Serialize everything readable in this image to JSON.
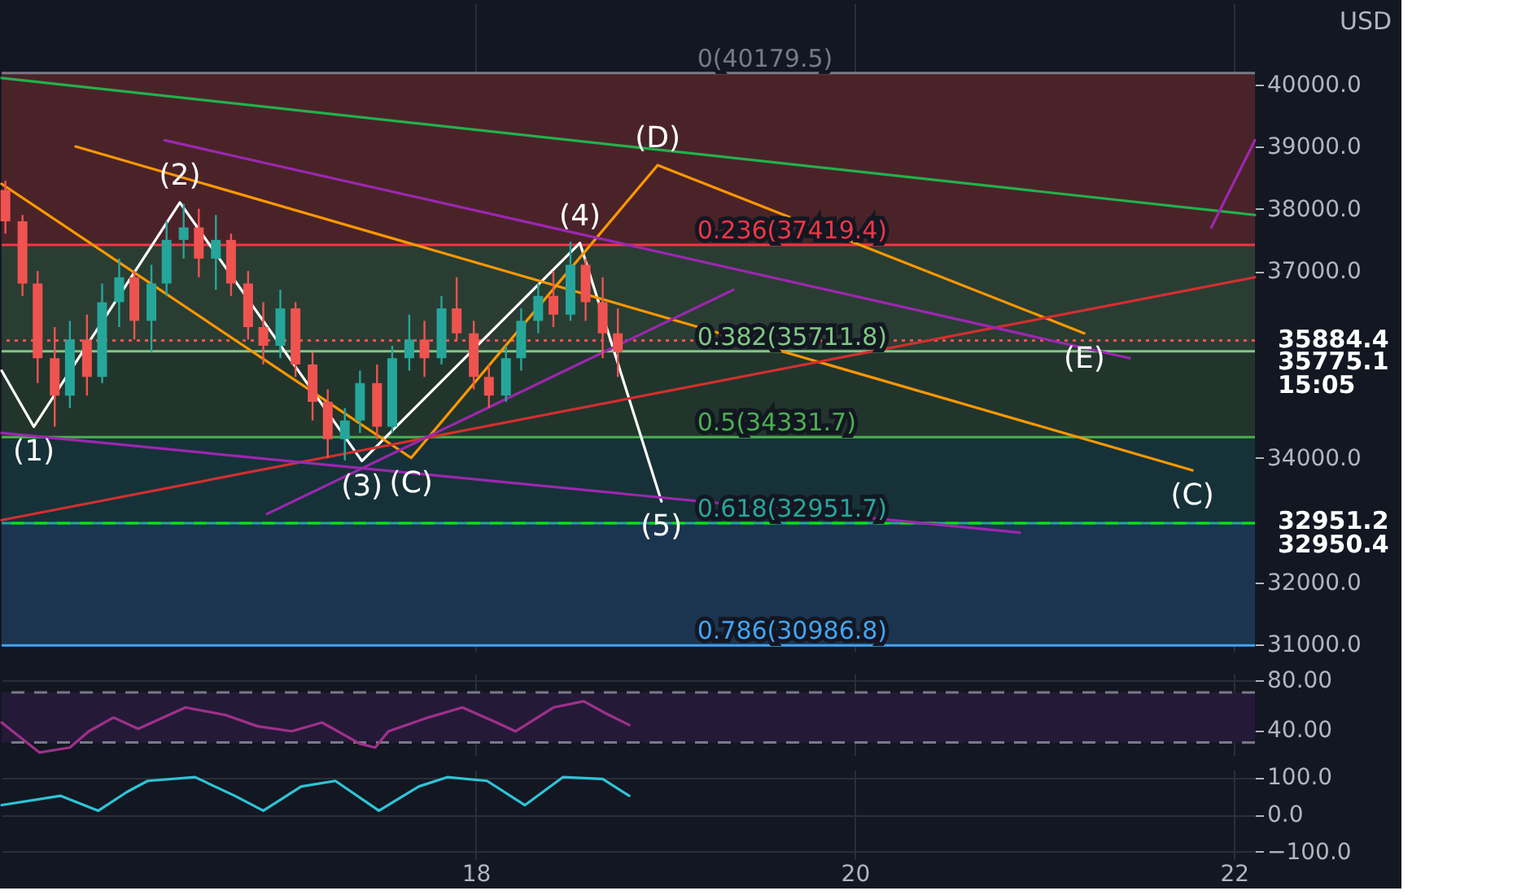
{
  "chart_data": [
    {
      "type": "candlestick",
      "xlim": [
        15.5,
        22.11
      ],
      "ylim": [
        30900,
        41300
      ],
      "xticks": [
        18,
        20,
        22
      ],
      "yticks": [
        {
          "value": 31000,
          "label": "31000.0"
        },
        {
          "value": 32000,
          "label": "32000.0"
        },
        {
          "value": 34000,
          "label": "34000.0"
        },
        {
          "value": 37000,
          "label": "37000.0"
        },
        {
          "value": 38000,
          "label": "38000.0"
        },
        {
          "value": 39000,
          "label": "39000.0"
        },
        {
          "value": 40000,
          "label": "40000.0"
        }
      ],
      "tick_labels": "y",
      "grid": true,
      "x": [
        15.52,
        15.61,
        15.69,
        15.78,
        15.86,
        15.95,
        16.03,
        16.12,
        16.2,
        16.29,
        16.37,
        16.46,
        16.54,
        16.63,
        16.71,
        16.8,
        16.88,
        16.97,
        17.05,
        17.14,
        17.22,
        17.31,
        17.39,
        17.48,
        17.56,
        17.65,
        17.73,
        17.82,
        17.9,
        17.99,
        18.07,
        18.16,
        18.24,
        18.33,
        18.41,
        18.5,
        18.58,
        18.67,
        18.75
      ],
      "ohlc": [
        [
          38300,
          38450,
          37600,
          37800
        ],
        [
          37800,
          37900,
          36600,
          36800
        ],
        [
          36800,
          37000,
          35200,
          35600
        ],
        [
          35600,
          36100,
          34500,
          35000
        ],
        [
          35000,
          36200,
          34800,
          35900
        ],
        [
          35900,
          36300,
          35000,
          35300
        ],
        [
          35300,
          36800,
          35200,
          36500
        ],
        [
          36500,
          37200,
          36100,
          36900
        ],
        [
          36900,
          37000,
          35900,
          36200
        ],
        [
          36200,
          37100,
          35700,
          36800
        ],
        [
          36800,
          37800,
          36600,
          37500
        ],
        [
          37500,
          38080,
          37200,
          37700
        ],
        [
          37700,
          38000,
          36900,
          37200
        ],
        [
          37200,
          37900,
          36700,
          37500
        ],
        [
          37500,
          37600,
          36600,
          36800
        ],
        [
          36800,
          37000,
          35900,
          36100
        ],
        [
          36100,
          36500,
          35500,
          35800
        ],
        [
          35800,
          36700,
          35600,
          36400
        ],
        [
          36400,
          36500,
          35300,
          35500
        ],
        [
          35500,
          35700,
          34600,
          34900
        ],
        [
          34900,
          35100,
          34000,
          34300
        ],
        [
          34300,
          34800,
          33960,
          34600
        ],
        [
          34600,
          35400,
          34400,
          35200
        ],
        [
          35200,
          35500,
          34300,
          34500
        ],
        [
          34500,
          35800,
          34400,
          35600
        ],
        [
          35600,
          36300,
          35400,
          35900
        ],
        [
          35900,
          36200,
          35300,
          35600
        ],
        [
          35600,
          36600,
          35500,
          36400
        ],
        [
          36400,
          36900,
          35900,
          36000
        ],
        [
          36000,
          36200,
          35100,
          35300
        ],
        [
          35300,
          35500,
          34800,
          35000
        ],
        [
          35000,
          35800,
          34900,
          35600
        ],
        [
          35600,
          36400,
          35400,
          36200
        ],
        [
          36200,
          36800,
          36000,
          36600
        ],
        [
          36600,
          37000,
          36100,
          36300
        ],
        [
          36300,
          37470,
          36200,
          37100
        ],
        [
          37100,
          37200,
          36200,
          36500
        ],
        [
          36500,
          36900,
          35600,
          36000
        ],
        [
          36000,
          36400,
          35300,
          35700
        ]
      ],
      "colors": [
        "#ef5350",
        "#ef5350",
        "#ef5350",
        "#ef5350",
        "#26a69a",
        "#ef5350",
        "#26a69a",
        "#26a69a",
        "#ef5350",
        "#26a69a",
        "#26a69a",
        "#26a69a",
        "#ef5350",
        "#26a69a",
        "#ef5350",
        "#ef5350",
        "#ef5350",
        "#26a69a",
        "#ef5350",
        "#ef5350",
        "#ef5350",
        "#26a69a",
        "#26a69a",
        "#ef5350",
        "#26a69a",
        "#26a69a",
        "#ef5350",
        "#26a69a",
        "#ef5350",
        "#ef5350",
        "#ef5350",
        "#26a69a",
        "#26a69a",
        "#26a69a",
        "#ef5350",
        "#26a69a",
        "#ef5350",
        "#ef5350",
        "#ef5350"
      ],
      "bands": [
        {
          "axis": "y",
          "from": 37419.4,
          "to": 40179.5,
          "color": "#4a2329"
        },
        {
          "axis": "y",
          "from": 35711.8,
          "to": 37419.4,
          "color": "#2a3d33"
        },
        {
          "axis": "y",
          "from": 34331.7,
          "to": 35711.8,
          "color": "#22352c"
        },
        {
          "axis": "y",
          "from": 32951.7,
          "to": 34331.7,
          "color": "#163238"
        },
        {
          "axis": "y",
          "from": 30986.8,
          "to": 32951.7,
          "color": "#1b3550"
        }
      ],
      "ref_lines": [
        {
          "axis": "y",
          "value": 40179.5,
          "label": "0(40179.5)",
          "color": "#787b86"
        },
        {
          "axis": "y",
          "value": 37419.4,
          "label": "0.236(37419.4)",
          "color": "#f23645"
        },
        {
          "axis": "y",
          "value": 35711.8,
          "label": "0.382(35711.8)",
          "color": "#81c784"
        },
        {
          "axis": "y",
          "value": 34331.7,
          "label": "0.5(34331.7)",
          "color": "#4caf50"
        },
        {
          "axis": "y",
          "value": 32951.7,
          "label": "0.618(32951.7)",
          "color": "#26a69a"
        },
        {
          "axis": "y",
          "value": 30986.8,
          "label": "0.786(30986.8)",
          "color": "#42a5f5"
        },
        {
          "axis": "y",
          "value": 35884.4,
          "color": "#ef5350",
          "line_style": "dotted"
        },
        {
          "axis": "y",
          "value": 32951.2,
          "color": "#00e600",
          "line_style": "dashed"
        }
      ],
      "series": [
        {
          "type": "line",
          "color": "#ffffff",
          "x": [
            15.5,
            15.67,
            16.44,
            17.4,
            18.55,
            18.98
          ],
          "values": [
            35400,
            34500,
            38100,
            33950,
            37450,
            33300
          ]
        },
        {
          "type": "line",
          "color": "#ff9800",
          "x": [
            15.5,
            17.66,
            18.96,
            21.21
          ],
          "values": [
            38400,
            34000,
            38700,
            36000
          ]
        },
        {
          "type": "line",
          "color": "#ff9800",
          "x": [
            15.89,
            21.78
          ],
          "values": [
            39000,
            33800
          ]
        },
        {
          "type": "line",
          "color": "#22b14c",
          "x": [
            15.5,
            22.11
          ],
          "values": [
            40100,
            37900
          ]
        },
        {
          "type": "line",
          "color": "#d32f2f",
          "x": [
            15.5,
            22.11
          ],
          "values": [
            33000,
            36900
          ]
        },
        {
          "type": "line",
          "color": "#9c27b0",
          "x": [
            16.36,
            21.45
          ],
          "values": [
            39100,
            35600
          ]
        },
        {
          "type": "line",
          "color": "#9c27b0",
          "x": [
            16.9,
            19.36
          ],
          "values": [
            33100,
            36700
          ]
        },
        {
          "type": "line",
          "color": "#9c27b0",
          "x": [
            15.5,
            20.87
          ],
          "values": [
            34400,
            32800
          ]
        },
        {
          "type": "line",
          "color": "#9c27b0",
          "x": [
            21.88,
            22.11
          ],
          "values": [
            37700,
            39100
          ]
        }
      ],
      "annotations": [
        {
          "text": "(1)",
          "x": 15.67,
          "y": 34500
        },
        {
          "text": "(2)",
          "x": 16.44,
          "y": 38100
        },
        {
          "text": "(3)",
          "x": 17.4,
          "y": 33950
        },
        {
          "text": "(C)",
          "x": 17.66,
          "y": 34000
        },
        {
          "text": "(4)",
          "x": 18.55,
          "y": 37450
        },
        {
          "text": "(5)",
          "x": 18.98,
          "y": 33300
        },
        {
          "text": "(D)",
          "x": 18.96,
          "y": 38700
        },
        {
          "text": "(E)",
          "x": 21.21,
          "y": 36000
        },
        {
          "text": "(C)",
          "x": 21.78,
          "y": 33800
        },
        {
          "text": "35884.4",
          "x": 22.11,
          "y": 35908
        },
        {
          "text": "35775.1",
          "x": 22.11,
          "y": 35550
        },
        {
          "text": "15:05",
          "x": 22.11,
          "y": 35166
        },
        {
          "text": "32951.2",
          "x": 22.11,
          "y": 32992
        },
        {
          "text": "32950.4",
          "x": 22.11,
          "y": 32609
        },
        "USD"
      ]
    },
    {
      "type": "line",
      "xlim": [
        15.5,
        22.11
      ],
      "ylim": [
        20,
        85
      ],
      "xticks": [
        18,
        20,
        22
      ],
      "yticks": [
        {
          "value": 40,
          "label": "40.00"
        },
        {
          "value": 80,
          "label": "80.00"
        }
      ],
      "tick_labels": "y",
      "grid": true,
      "bands": [
        {
          "axis": "y",
          "from": 30,
          "to": 70,
          "color": "#241a38"
        }
      ],
      "ref_lines": [
        {
          "axis": "y",
          "value": 70,
          "color": "#787b86",
          "line_style": "dashed"
        },
        {
          "axis": "y",
          "value": 30,
          "color": "#787b86",
          "line_style": "dashed"
        }
      ],
      "x": [
        15.5,
        15.7,
        15.86,
        15.96,
        16.09,
        16.22,
        16.47,
        16.68,
        16.85,
        17.03,
        17.19,
        17.39,
        17.47,
        17.54,
        17.75,
        17.93,
        18.11,
        18.21,
        18.41,
        18.57,
        18.69,
        18.81
      ],
      "series": [
        {
          "color": "#a0308a",
          "values": [
            46,
            22,
            26,
            39,
            50,
            41,
            58,
            52,
            43,
            39,
            46,
            29,
            26,
            39,
            50,
            58,
            46,
            39,
            58,
            63,
            53,
            44
          ]
        }
      ]
    },
    {
      "type": "line",
      "xlim": [
        15.5,
        22.11
      ],
      "ylim": [
        -120,
        120
      ],
      "xticks": [
        18,
        20,
        22
      ],
      "yticks": [
        {
          "value": 100,
          "label": "100.0"
        },
        {
          "value": 0,
          "label": "0.0"
        },
        {
          "value": -100,
          "label": "−100.0"
        }
      ],
      "grid": true,
      "x": [
        15.5,
        15.81,
        16.01,
        16.16,
        16.27,
        16.52,
        16.73,
        16.88,
        17.08,
        17.26,
        17.49,
        17.7,
        17.85,
        18.06,
        18.26,
        18.46,
        18.67,
        18.81
      ],
      "series": [
        {
          "color": "#2ec4d6",
          "values": [
            25,
            50,
            10,
            60,
            90,
            100,
            50,
            10,
            75,
            90,
            10,
            75,
            100,
            90,
            25,
            100,
            95,
            50
          ]
        }
      ]
    }
  ]
}
